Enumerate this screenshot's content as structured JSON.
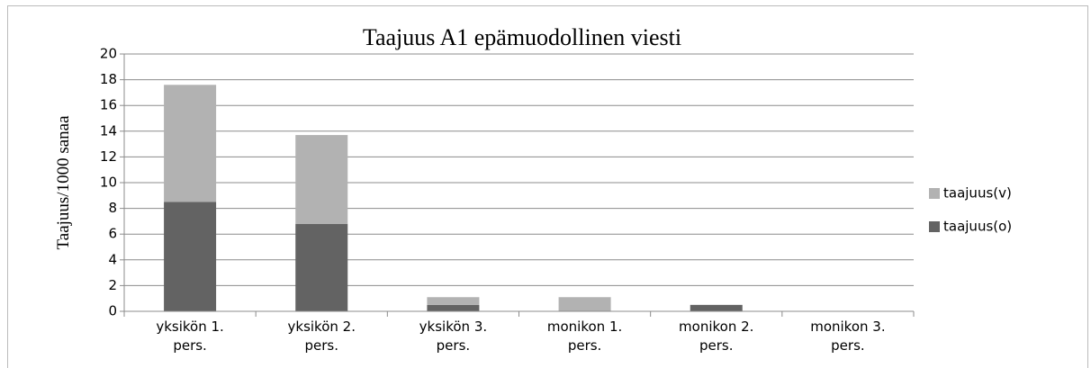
{
  "chart_data": {
    "type": "stacked_bar",
    "title": "Taajuus A1 epämuodollinen viesti",
    "y_label": "Taajuus/1000 sanaa",
    "categories": [
      "yksikön 1. pers.",
      "yksikön 2. pers.",
      "yksikön 3. pers.",
      "monikon 1. pers.",
      "monikon 2. pers.",
      "monikon 3. pers."
    ],
    "series": [
      {
        "name": "taajuus(o)",
        "color": "#636363",
        "values": [
          8.5,
          6.8,
          0.5,
          0,
          0.5,
          0
        ]
      },
      {
        "name": "taajuus(v)",
        "color": "#b2b2b2",
        "values": [
          9.1,
          6.9,
          0.6,
          1.1,
          0,
          0
        ]
      }
    ],
    "ylim": [
      0,
      20
    ],
    "yticks": [
      0,
      2,
      4,
      6,
      8,
      10,
      12,
      14,
      16,
      18,
      20
    ],
    "grid": true,
    "legend": "right"
  }
}
